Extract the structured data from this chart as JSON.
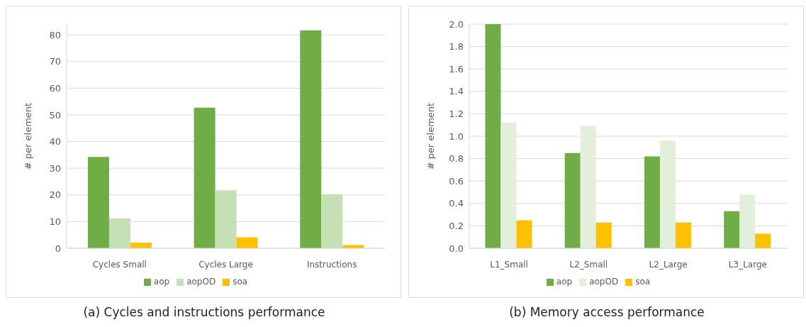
{
  "chart_data": [
    {
      "type": "bar",
      "title": "(a) Cycles and instructions performance",
      "ylabel": "# per element",
      "categories": [
        "Cycles Small",
        "Cycles Large",
        "Instructions"
      ],
      "series": [
        {
          "name": "aop",
          "color": "#70ad47",
          "values": [
            34.2,
            52.7,
            81.7
          ]
        },
        {
          "name": "aopOD",
          "color": "#c5e0b4",
          "values": [
            11.2,
            21.7,
            20.2
          ]
        },
        {
          "name": "soa",
          "color": "#ffc000",
          "values": [
            2.1,
            4.1,
            1.2
          ]
        }
      ],
      "ylim": [
        0,
        84
      ],
      "yticks": [
        0,
        10,
        20,
        30,
        40,
        50,
        60,
        70,
        80
      ],
      "grid": "y",
      "legend": "bottom"
    },
    {
      "type": "bar",
      "title": "(b) Memory access performance",
      "ylabel": "# per element",
      "categories": [
        "L1_Small",
        "L2_Small",
        "L2_Large",
        "L3_Large"
      ],
      "series": [
        {
          "name": "aop",
          "color": "#70ad47",
          "values": [
            2.0,
            0.85,
            0.82,
            0.33
          ]
        },
        {
          "name": "aopOD",
          "color": "#e2efda",
          "values": [
            1.12,
            1.09,
            0.96,
            0.48
          ]
        },
        {
          "name": "soa",
          "color": "#ffc000",
          "values": [
            0.25,
            0.23,
            0.23,
            0.13
          ]
        }
      ],
      "ylim": [
        0,
        2.0
      ],
      "yticks": [
        {
          "value": 0,
          "label": "0.0"
        },
        {
          "value": 0.2,
          "label": "0.2"
        },
        {
          "value": 0.4,
          "label": "0.4"
        },
        {
          "value": 0.6,
          "label": "0.6"
        },
        {
          "value": 0.8,
          "label": "0.8"
        },
        {
          "value": 1,
          "label": "1.0"
        },
        {
          "value": 1.2,
          "label": "1.2"
        },
        {
          "value": 1.4,
          "label": "1.4"
        },
        {
          "value": 1.6,
          "label": "1.6"
        },
        {
          "value": 1.8,
          "label": "1.8"
        },
        {
          "value": 2,
          "label": "2.0"
        }
      ],
      "grid": "y",
      "legend": "bottom"
    }
  ]
}
